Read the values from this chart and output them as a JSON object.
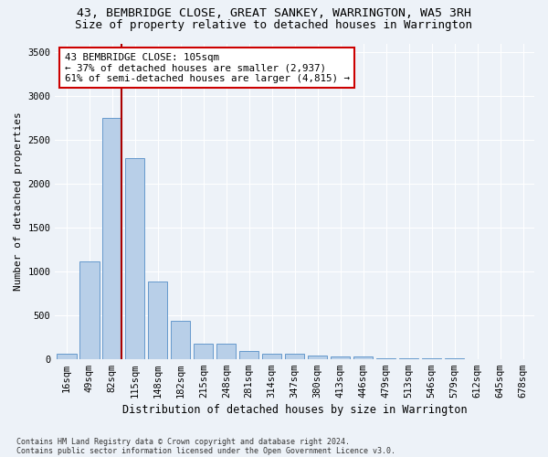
{
  "title1": "43, BEMBRIDGE CLOSE, GREAT SANKEY, WARRINGTON, WA5 3RH",
  "title2": "Size of property relative to detached houses in Warrington",
  "xlabel": "Distribution of detached houses by size in Warrington",
  "ylabel": "Number of detached properties",
  "footnote1": "Contains HM Land Registry data © Crown copyright and database right 2024.",
  "footnote2": "Contains public sector information licensed under the Open Government Licence v3.0.",
  "categories": [
    "16sqm",
    "49sqm",
    "82sqm",
    "115sqm",
    "148sqm",
    "182sqm",
    "215sqm",
    "248sqm",
    "281sqm",
    "314sqm",
    "347sqm",
    "380sqm",
    "413sqm",
    "446sqm",
    "479sqm",
    "513sqm",
    "546sqm",
    "579sqm",
    "612sqm",
    "645sqm",
    "678sqm"
  ],
  "values": [
    55,
    1110,
    2750,
    2290,
    880,
    430,
    175,
    170,
    90,
    60,
    55,
    40,
    30,
    25,
    10,
    5,
    5,
    3,
    2,
    2,
    2
  ],
  "bar_color": "#b8cfe8",
  "bar_edge_color": "#6699cc",
  "vline_color": "#aa0000",
  "annotation_text": "43 BEMBRIDGE CLOSE: 105sqm\n← 37% of detached houses are smaller (2,937)\n61% of semi-detached houses are larger (4,815) →",
  "annotation_box_color": "#ffffff",
  "annotation_box_edge_color": "#cc0000",
  "ylim": [
    0,
    3600
  ],
  "yticks": [
    0,
    500,
    1000,
    1500,
    2000,
    2500,
    3000,
    3500
  ],
  "bg_color": "#edf2f8",
  "plot_bg_color": "#edf2f8",
  "grid_color": "#ffffff",
  "title1_fontsize": 9.5,
  "title2_fontsize": 9,
  "xlabel_fontsize": 8.5,
  "ylabel_fontsize": 8,
  "tick_fontsize": 7.5,
  "annot_fontsize": 7.8,
  "footnote_fontsize": 6
}
